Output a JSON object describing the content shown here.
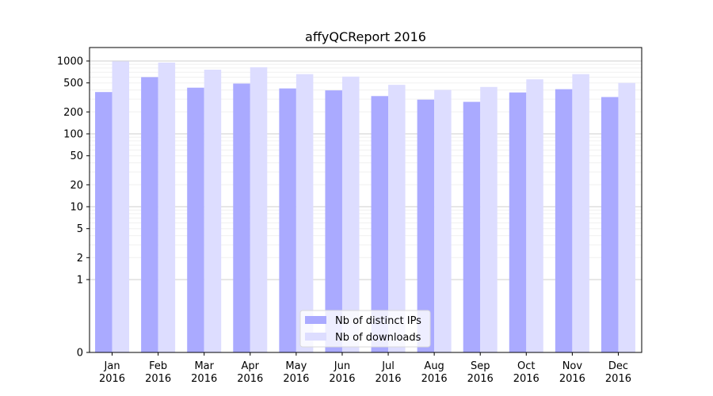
{
  "chart_data": {
    "type": "bar",
    "title": "affyQCReport 2016",
    "xlabel": "",
    "ylabel": "",
    "yscale": "symlog",
    "ylim": [
      0,
      1300
    ],
    "yticks": [
      0,
      1,
      2,
      5,
      10,
      20,
      50,
      100,
      200,
      500,
      1000
    ],
    "grid": true,
    "legend_position": "bottom-center",
    "categories": [
      [
        "Jan",
        "2016"
      ],
      [
        "Feb",
        "2016"
      ],
      [
        "Mar",
        "2016"
      ],
      [
        "Apr",
        "2016"
      ],
      [
        "May",
        "2016"
      ],
      [
        "Jun",
        "2016"
      ],
      [
        "Jul",
        "2016"
      ],
      [
        "Aug",
        "2016"
      ],
      [
        "Sep",
        "2016"
      ],
      [
        "Oct",
        "2016"
      ],
      [
        "Nov",
        "2016"
      ],
      [
        "Dec",
        "2016"
      ]
    ],
    "series": [
      {
        "name": "Nb of distinct IPs",
        "color": "#aaaaff",
        "values": [
          375,
          600,
          430,
          490,
          420,
          395,
          330,
          295,
          275,
          370,
          410,
          320
        ]
      },
      {
        "name": "Nb of downloads",
        "color": "#ddddff",
        "values": [
          990,
          950,
          760,
          820,
          660,
          610,
          470,
          400,
          440,
          560,
          660,
          500
        ]
      }
    ]
  }
}
